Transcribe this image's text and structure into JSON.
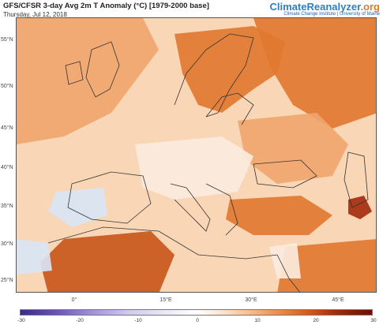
{
  "header": {
    "title": "GFS/CFSR 3-day Avg 2m T Anomaly (°C) [1979-2000 base]",
    "subtitle": "Thursday, Jul 12, 2018"
  },
  "brand": {
    "name_main": "ClimateReanalyzer",
    "name_suffix": ".org",
    "tagline": "Climate Change Institute | University of Maine"
  },
  "map": {
    "lat_labels": [
      "55°N",
      "50°N",
      "45°N",
      "40°N",
      "35°N",
      "30°N",
      "25°N"
    ],
    "lon_labels": [
      "0°",
      "15°E",
      "30°E",
      "45°E"
    ],
    "colors": {
      "frame_bg": "#f6c7a0",
      "warm_light": "#f9d6b6",
      "warm_mid": "#f0a56b",
      "warm_strong": "#e0782f",
      "warm_deep": "#c85518",
      "hot": "#a3290c",
      "neutral": "#fbece0",
      "cool": "#d8e6f6",
      "coast": "#333333"
    }
  },
  "colorbar": {
    "ticks": [
      "-30",
      "-20",
      "-10",
      "0",
      "10",
      "20",
      "30"
    ],
    "range": [
      -30,
      30
    ]
  }
}
